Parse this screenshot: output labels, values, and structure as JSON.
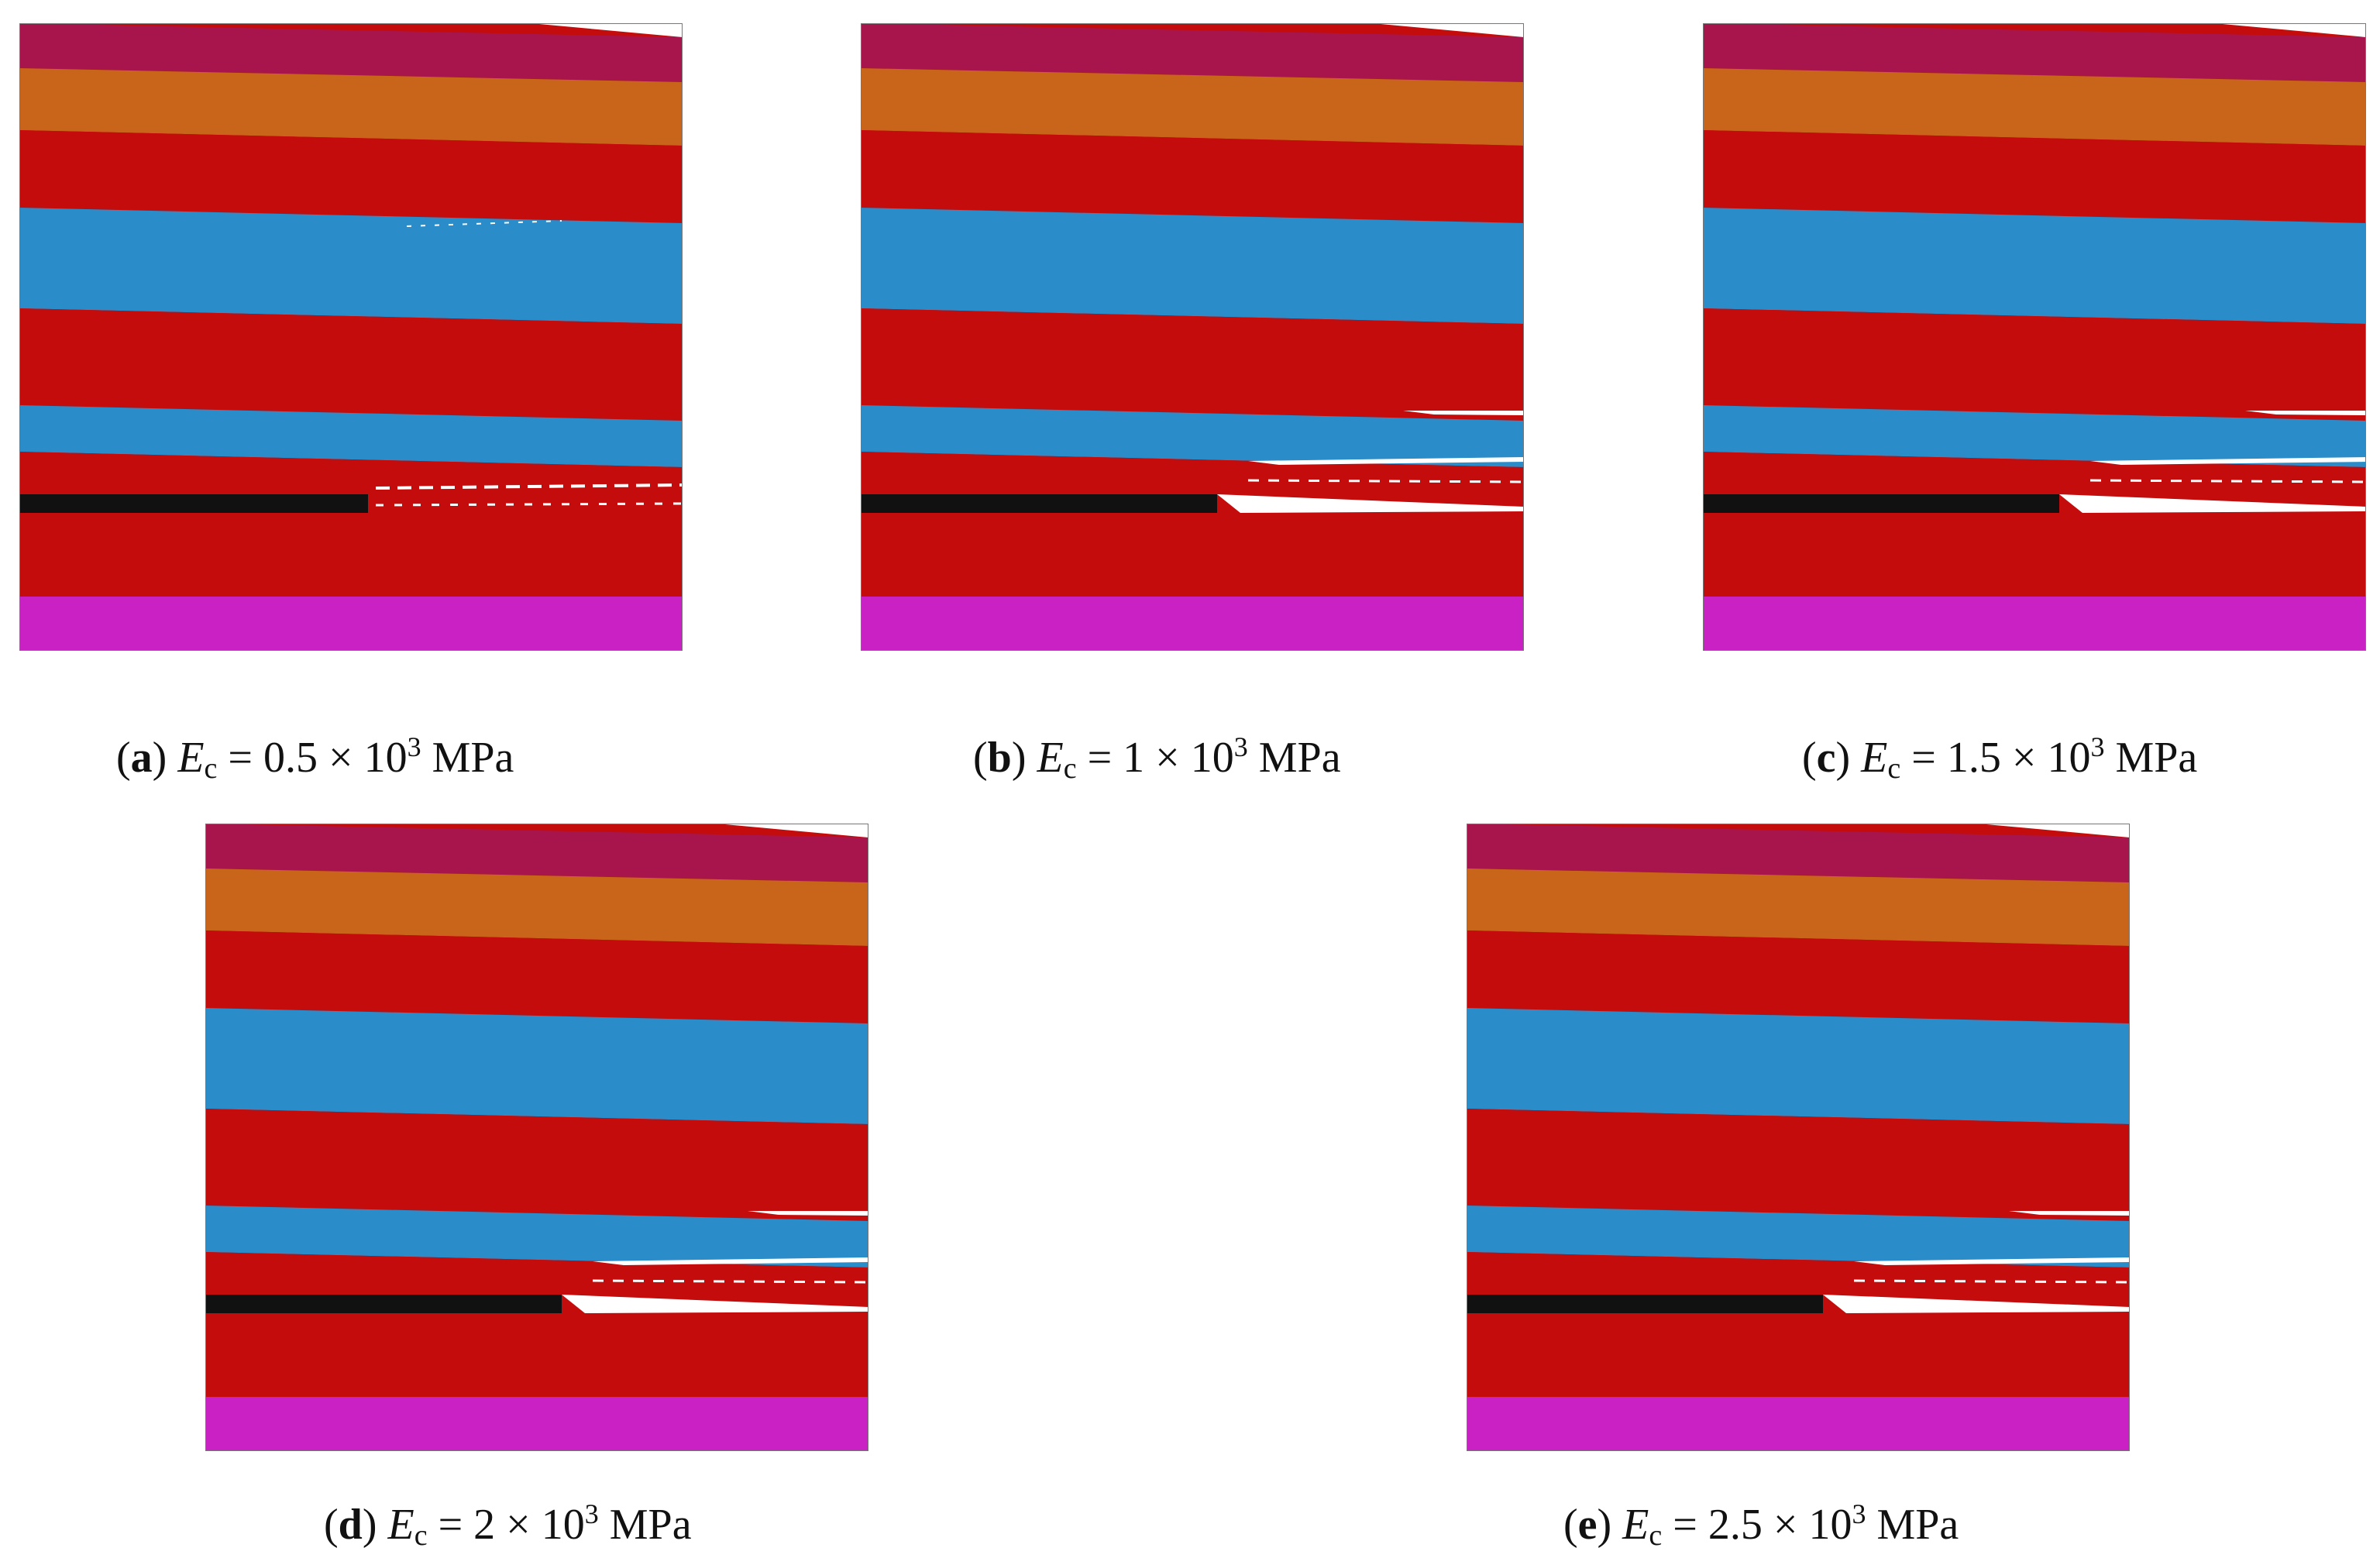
{
  "colors": {
    "top_layer": "#A8154C",
    "orange_layer": "#C8651A",
    "red_layer": "#C40C0C",
    "blue_layer": "#2A8CC9",
    "coal_seam": "#111111",
    "base_layer": "#C921C4",
    "gap": "#FFFFFF"
  },
  "panels": [
    {
      "letter": "a",
      "symbol": "E",
      "subscript": "c",
      "eq": " = ",
      "value": "0.5 × 10",
      "exponent": "3",
      "unit": " MPa"
    },
    {
      "letter": "b",
      "symbol": "E",
      "subscript": "c",
      "eq": " = ",
      "value": "1 × 10",
      "exponent": "3",
      "unit": " MPa"
    },
    {
      "letter": "c",
      "symbol": "E",
      "subscript": "c",
      "eq": " = ",
      "value": "1.5 × 10",
      "exponent": "3",
      "unit": " MPa"
    },
    {
      "letter": "d",
      "symbol": "E",
      "subscript": "c",
      "eq": " = ",
      "value": "2 × 10",
      "exponent": "3",
      "unit": " MPa"
    },
    {
      "letter": "e",
      "symbol": "E",
      "subscript": "c",
      "eq": " = ",
      "value": "2.5 × 10",
      "exponent": "3",
      "unit": " MPa"
    }
  ]
}
